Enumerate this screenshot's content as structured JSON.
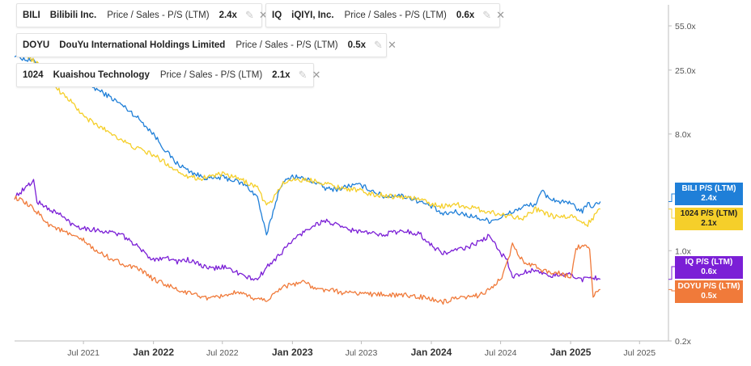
{
  "legend": [
    {
      "id": "bili",
      "ticker": "BILI",
      "company": "Bilibili Inc.",
      "metric": "Price / Sales - P/S (LTM)",
      "value": "2.4x",
      "color": "#1f7fd8"
    },
    {
      "id": "iq",
      "ticker": "IQ",
      "company": "iQIYI, Inc.",
      "metric": "Price / Sales - P/S (LTM)",
      "value": "0.6x",
      "color": "#7b1fd6"
    },
    {
      "id": "doyu",
      "ticker": "DOYU",
      "company": "DouYu International Holdings Limited",
      "metric": "Price / Sales - P/S (LTM)",
      "value": "0.5x",
      "color": "#f07a3a"
    },
    {
      "id": "k1024",
      "ticker": "1024",
      "company": "Kuaishou Technology",
      "metric": "Price / Sales - P/S (LTM)",
      "value": "2.1x",
      "color": "#f5cf2a"
    }
  ],
  "value_labels": [
    {
      "id": "bili",
      "name": "BILI P/S (LTM)",
      "value": "2.4x",
      "color": "#1f7fd8"
    },
    {
      "id": "k1024",
      "name": "1024 P/S (LTM)",
      "value": "2.1x",
      "color": "#f5cf2a"
    },
    {
      "id": "iq",
      "name": "IQ P/S (LTM)",
      "value": "0.6x",
      "color": "#7b1fd6"
    },
    {
      "id": "doyu",
      "name": "DOYU P/S (LTM)",
      "value": "0.5x",
      "color": "#f07a3a"
    }
  ],
  "chart_data": {
    "type": "line",
    "y_scale": "log",
    "ylim": [
      0.2,
      80
    ],
    "xlim": [
      "2021-01-01",
      "2025-09-15"
    ],
    "x_ticks": [
      {
        "date": "2021-07-01",
        "label": "Jul 2021",
        "bold": false
      },
      {
        "date": "2022-01-01",
        "label": "Jan 2022",
        "bold": true
      },
      {
        "date": "2022-07-01",
        "label": "Jul 2022",
        "bold": false
      },
      {
        "date": "2023-01-01",
        "label": "Jan 2023",
        "bold": true
      },
      {
        "date": "2023-07-01",
        "label": "Jul 2023",
        "bold": false
      },
      {
        "date": "2024-01-01",
        "label": "Jan 2024",
        "bold": true
      },
      {
        "date": "2024-07-01",
        "label": "Jul 2024",
        "bold": false
      },
      {
        "date": "2025-01-01",
        "label": "Jan 2025",
        "bold": true
      },
      {
        "date": "2025-07-01",
        "label": "Jul 2025",
        "bold": false
      }
    ],
    "y_ticks": [
      {
        "value": 55,
        "label": "55.0x"
      },
      {
        "value": 25,
        "label": "25.0x"
      },
      {
        "value": 8,
        "label": "8.0x"
      },
      {
        "value": 1,
        "label": "1.0x"
      },
      {
        "value": 0.2,
        "label": "0.2x"
      }
    ],
    "grid": false,
    "series": [
      {
        "id": "bili",
        "name": "BILI",
        "color": "#1f7fd8",
        "x": [
          "2021-01-01",
          "2021-02-01",
          "2021-03-01",
          "2021-04-01",
          "2021-05-01",
          "2021-06-01",
          "2021-07-01",
          "2021-08-01",
          "2021-09-01",
          "2021-10-01",
          "2021-11-01",
          "2021-12-01",
          "2022-01-01",
          "2022-02-01",
          "2022-03-01",
          "2022-04-01",
          "2022-05-01",
          "2022-06-01",
          "2022-07-01",
          "2022-08-01",
          "2022-09-01",
          "2022-10-01",
          "2022-10-25",
          "2022-11-15",
          "2022-12-01",
          "2023-01-01",
          "2023-02-01",
          "2023-03-01",
          "2023-04-01",
          "2023-05-01",
          "2023-06-01",
          "2023-07-01",
          "2023-08-01",
          "2023-09-01",
          "2023-10-01",
          "2023-11-01",
          "2023-12-01",
          "2024-01-01",
          "2024-02-01",
          "2024-03-01",
          "2024-04-01",
          "2024-05-01",
          "2024-06-01",
          "2024-07-01",
          "2024-08-01",
          "2024-09-01",
          "2024-10-01",
          "2024-10-20",
          "2024-11-01",
          "2024-12-01",
          "2025-01-01",
          "2025-02-01",
          "2025-02-15",
          "2025-03-01",
          "2025-03-20"
        ],
        "values": [
          33,
          30,
          29,
          25,
          23,
          24,
          21,
          18,
          16,
          14,
          12,
          10,
          8,
          6,
          4.8,
          4.2,
          3.8,
          3.6,
          3.7,
          3.5,
          3.2,
          2.6,
          1.3,
          2.2,
          3.2,
          3.8,
          3.6,
          3.4,
          3.0,
          3.0,
          3.2,
          3.2,
          2.9,
          2.6,
          2.7,
          2.6,
          2.4,
          2.2,
          1.9,
          2.0,
          1.9,
          1.8,
          1.7,
          1.8,
          2.0,
          2.2,
          2.3,
          2.9,
          2.6,
          2.4,
          2.3,
          2.0,
          2.3,
          2.2,
          2.4
        ]
      },
      {
        "id": "k1024",
        "name": "1024",
        "color": "#f5cf2a",
        "x": [
          "2021-02-05",
          "2021-03-01",
          "2021-04-01",
          "2021-05-01",
          "2021-06-01",
          "2021-07-01",
          "2021-08-01",
          "2021-09-01",
          "2021-10-01",
          "2021-11-01",
          "2021-12-01",
          "2022-01-01",
          "2022-02-01",
          "2022-03-01",
          "2022-04-01",
          "2022-05-01",
          "2022-06-01",
          "2022-07-01",
          "2022-08-01",
          "2022-09-01",
          "2022-10-01",
          "2022-10-25",
          "2022-11-15",
          "2022-12-01",
          "2023-01-01",
          "2023-02-01",
          "2023-03-01",
          "2023-04-01",
          "2023-05-01",
          "2023-06-01",
          "2023-07-01",
          "2023-08-01",
          "2023-09-01",
          "2023-10-01",
          "2023-11-01",
          "2023-12-01",
          "2024-01-01",
          "2024-02-01",
          "2024-03-01",
          "2024-04-01",
          "2024-05-01",
          "2024-06-01",
          "2024-07-01",
          "2024-08-01",
          "2024-09-01",
          "2024-10-01",
          "2024-11-01",
          "2024-12-01",
          "2025-01-01",
          "2025-02-01",
          "2025-02-15",
          "2025-03-01",
          "2025-03-20"
        ],
        "values": [
          32,
          28,
          22,
          17,
          14,
          11,
          9.5,
          8.5,
          7.5,
          6.5,
          6,
          5.5,
          4.8,
          4.2,
          3.8,
          3.6,
          3.8,
          3.9,
          3.7,
          3.4,
          3.1,
          2.2,
          2.6,
          3.2,
          3.6,
          3.5,
          3.5,
          3.3,
          3.1,
          3.0,
          2.9,
          2.7,
          2.7,
          2.6,
          2.6,
          2.5,
          2.3,
          2.2,
          2.3,
          2.2,
          2.1,
          2.0,
          1.9,
          1.85,
          1.8,
          2.1,
          1.9,
          1.8,
          1.85,
          1.7,
          1.6,
          1.8,
          2.1
        ]
      },
      {
        "id": "iq",
        "name": "IQ",
        "color": "#7b1fd6",
        "x": [
          "2021-01-01",
          "2021-02-01",
          "2021-02-20",
          "2021-03-01",
          "2021-04-01",
          "2021-05-01",
          "2021-06-01",
          "2021-07-01",
          "2021-08-01",
          "2021-09-01",
          "2021-10-01",
          "2021-11-01",
          "2021-12-01",
          "2022-01-01",
          "2022-02-01",
          "2022-03-01",
          "2022-04-01",
          "2022-05-01",
          "2022-06-01",
          "2022-07-01",
          "2022-08-01",
          "2022-09-01",
          "2022-10-01",
          "2022-11-01",
          "2022-12-01",
          "2023-01-01",
          "2023-02-01",
          "2023-03-01",
          "2023-04-01",
          "2023-05-01",
          "2023-06-01",
          "2023-07-01",
          "2023-08-01",
          "2023-09-01",
          "2023-10-01",
          "2023-11-01",
          "2023-12-01",
          "2024-01-01",
          "2024-02-01",
          "2024-03-01",
          "2024-04-01",
          "2024-05-01",
          "2024-06-01",
          "2024-07-01",
          "2024-07-15",
          "2024-08-01",
          "2024-09-01",
          "2024-10-01",
          "2024-11-01",
          "2024-12-01",
          "2025-01-01",
          "2025-02-01",
          "2025-03-01",
          "2025-03-20"
        ],
        "values": [
          2.6,
          3.1,
          3.5,
          2.4,
          2.1,
          1.9,
          1.6,
          1.5,
          1.45,
          1.4,
          1.35,
          1.2,
          1.0,
          0.85,
          0.9,
          0.82,
          0.85,
          0.78,
          0.72,
          0.75,
          0.7,
          0.62,
          0.6,
          0.78,
          0.95,
          1.2,
          1.4,
          1.6,
          1.7,
          1.55,
          1.45,
          1.4,
          1.35,
          1.35,
          1.4,
          1.4,
          1.35,
          1.1,
          0.95,
          1.0,
          1.05,
          1.15,
          1.3,
          0.95,
          0.9,
          0.62,
          0.68,
          0.72,
          0.63,
          0.65,
          0.65,
          0.6,
          0.63,
          0.6
        ]
      },
      {
        "id": "doyu",
        "name": "DOYU",
        "color": "#f07a3a",
        "x": [
          "2021-01-01",
          "2021-02-01",
          "2021-03-01",
          "2021-04-01",
          "2021-05-01",
          "2021-06-01",
          "2021-07-01",
          "2021-08-01",
          "2021-09-01",
          "2021-10-01",
          "2021-11-01",
          "2021-12-01",
          "2022-01-01",
          "2022-02-01",
          "2022-03-01",
          "2022-04-01",
          "2022-05-01",
          "2022-06-01",
          "2022-07-01",
          "2022-08-01",
          "2022-09-01",
          "2022-10-01",
          "2022-11-01",
          "2022-12-01",
          "2023-01-01",
          "2023-02-01",
          "2023-03-01",
          "2023-04-01",
          "2023-05-01",
          "2023-06-01",
          "2023-07-01",
          "2023-08-01",
          "2023-09-01",
          "2023-10-01",
          "2023-11-01",
          "2023-12-01",
          "2024-01-01",
          "2024-02-01",
          "2024-03-01",
          "2024-04-01",
          "2024-05-01",
          "2024-06-01",
          "2024-07-01",
          "2024-07-15",
          "2024-08-01",
          "2024-09-01",
          "2024-10-01",
          "2024-11-01",
          "2024-12-01",
          "2025-01-01",
          "2025-01-15",
          "2025-02-01",
          "2025-02-20",
          "2025-03-01",
          "2025-03-20"
        ],
        "values": [
          2.6,
          2.3,
          2.0,
          1.6,
          1.45,
          1.3,
          1.2,
          1.0,
          0.9,
          0.82,
          0.75,
          0.7,
          0.6,
          0.55,
          0.5,
          0.47,
          0.45,
          0.42,
          0.45,
          0.47,
          0.45,
          0.42,
          0.42,
          0.52,
          0.55,
          0.58,
          0.5,
          0.5,
          0.48,
          0.47,
          0.47,
          0.46,
          0.46,
          0.45,
          0.45,
          0.44,
          0.42,
          0.4,
          0.42,
          0.43,
          0.45,
          0.5,
          0.6,
          0.75,
          1.1,
          0.8,
          0.75,
          0.68,
          0.68,
          0.62,
          1.05,
          1.1,
          1.05,
          0.45,
          0.5
        ]
      }
    ]
  }
}
